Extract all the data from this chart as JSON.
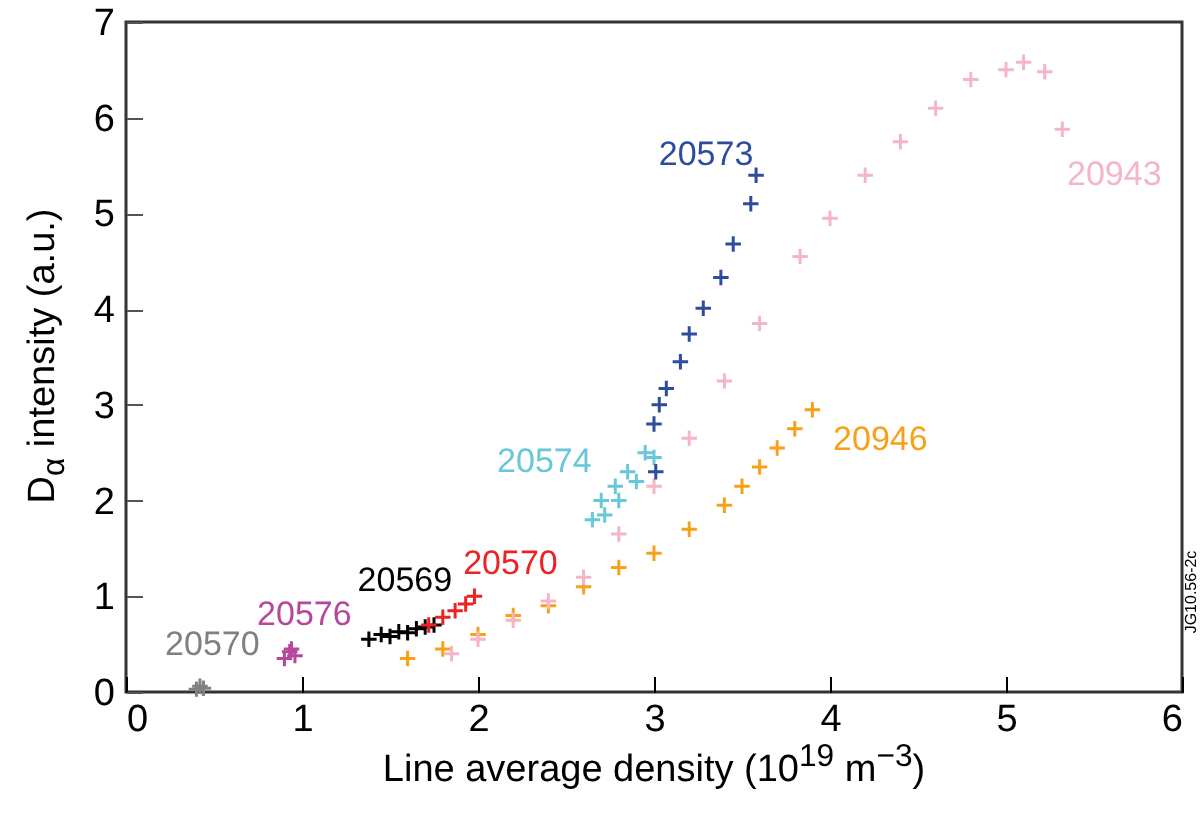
{
  "chart_data": {
    "type": "scatter",
    "xlabel": "Line average density (10$^{19}$ m$^{−3}$)",
    "ylabel": "D$_{α}$ intensity (a.u.)",
    "xlim": [
      0,
      6
    ],
    "ylim": [
      0,
      7
    ],
    "xticks": [
      0,
      1,
      2,
      3,
      4,
      5,
      6
    ],
    "yticks": [
      0,
      1,
      2,
      3,
      4,
      5,
      6,
      7
    ],
    "grid": false,
    "marker": "cross",
    "annotations": [
      "JG10.56-2c"
    ],
    "series": [
      {
        "name": "20570",
        "color": "#808080",
        "x": [
          0.4,
          0.42,
          0.44
        ],
        "values": [
          0.03,
          0.06,
          0.04
        ]
      },
      {
        "name": "20576",
        "color": "#b5489c",
        "x": [
          0.9,
          0.93,
          0.96,
          0.94
        ],
        "values": [
          0.35,
          0.42,
          0.38,
          0.45
        ]
      },
      {
        "name": "20569",
        "color": "#000000",
        "x": [
          1.38,
          1.45,
          1.5,
          1.55,
          1.6,
          1.65,
          1.7,
          1.75
        ],
        "values": [
          0.55,
          0.6,
          0.58,
          0.63,
          0.62,
          0.66,
          0.68,
          0.7
        ]
      },
      {
        "name": "20570",
        "color": "#ee2222",
        "x": [
          1.72,
          1.8,
          1.87,
          1.93,
          1.98
        ],
        "values": [
          0.7,
          0.78,
          0.85,
          0.92,
          1.0
        ]
      },
      {
        "name": "20946",
        "color": "#f7a11a",
        "x": [
          1.6,
          1.8,
          2.0,
          2.2,
          2.4,
          2.6,
          2.8,
          3.0,
          3.2,
          3.4,
          3.5,
          3.6,
          3.7,
          3.8,
          3.9
        ],
        "values": [
          0.35,
          0.45,
          0.6,
          0.8,
          0.9,
          1.1,
          1.3,
          1.45,
          1.7,
          1.95,
          2.15,
          2.35,
          2.55,
          2.75,
          2.95
        ]
      },
      {
        "name": "20943",
        "color": "#f4b6c6",
        "x": [
          1.85,
          2.0,
          2.2,
          2.4,
          2.6,
          2.8,
          3.0,
          3.2,
          3.4,
          3.6,
          3.83,
          4.0,
          4.2,
          4.4,
          4.6,
          4.8,
          5.0,
          5.1,
          5.22,
          5.32
        ],
        "values": [
          0.4,
          0.55,
          0.75,
          0.95,
          1.2,
          1.65,
          2.15,
          2.65,
          3.25,
          3.85,
          4.55,
          4.95,
          5.4,
          5.75,
          6.1,
          6.4,
          6.5,
          6.58,
          6.48,
          5.88
        ]
      },
      {
        "name": "20574",
        "color": "#66c8d8",
        "x": [
          2.65,
          2.7,
          2.78,
          2.85,
          2.95,
          3.0,
          2.9,
          2.8,
          2.72
        ],
        "values": [
          1.8,
          2.0,
          2.15,
          2.3,
          2.5,
          2.45,
          2.2,
          2.0,
          1.85
        ]
      },
      {
        "name": "20573",
        "color": "#2e4c9e",
        "x": [
          3.01,
          3.0,
          3.03,
          3.07,
          3.15,
          3.2,
          3.28,
          3.38,
          3.45,
          3.55,
          3.58
        ],
        "values": [
          2.3,
          2.8,
          3.0,
          3.17,
          3.45,
          3.74,
          4.01,
          4.33,
          4.68,
          5.1,
          5.4
        ]
      }
    ]
  }
}
